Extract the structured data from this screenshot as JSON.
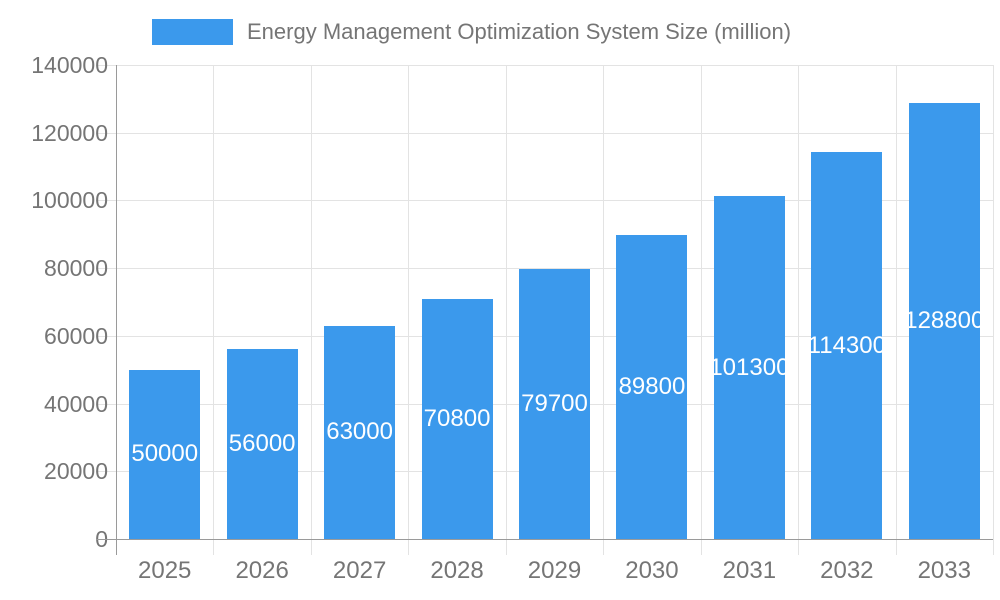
{
  "legend": {
    "label": "Energy Management Optimization System Size (million)"
  },
  "colors": {
    "bar": "#3B99EC",
    "grid": "#e3e3e3",
    "axis": "#9a9a9a",
    "axis_text": "#757575",
    "value_text": "#ffffff"
  },
  "chart_data": {
    "type": "bar",
    "title": "Energy Management Optimization System Size (million)",
    "categories": [
      "2025",
      "2026",
      "2027",
      "2028",
      "2029",
      "2030",
      "2031",
      "2032",
      "2033"
    ],
    "values": [
      50000,
      56000,
      63000,
      70800,
      79700,
      89800,
      101300,
      114300,
      128800
    ],
    "xlabel": "",
    "ylabel": "",
    "ylim": [
      0,
      140000
    ],
    "ytick_step": 20000,
    "yticks": [
      0,
      20000,
      40000,
      60000,
      80000,
      100000,
      120000,
      140000
    ],
    "grid": true,
    "legend_position": "top",
    "value_label_position": "inside-center"
  }
}
